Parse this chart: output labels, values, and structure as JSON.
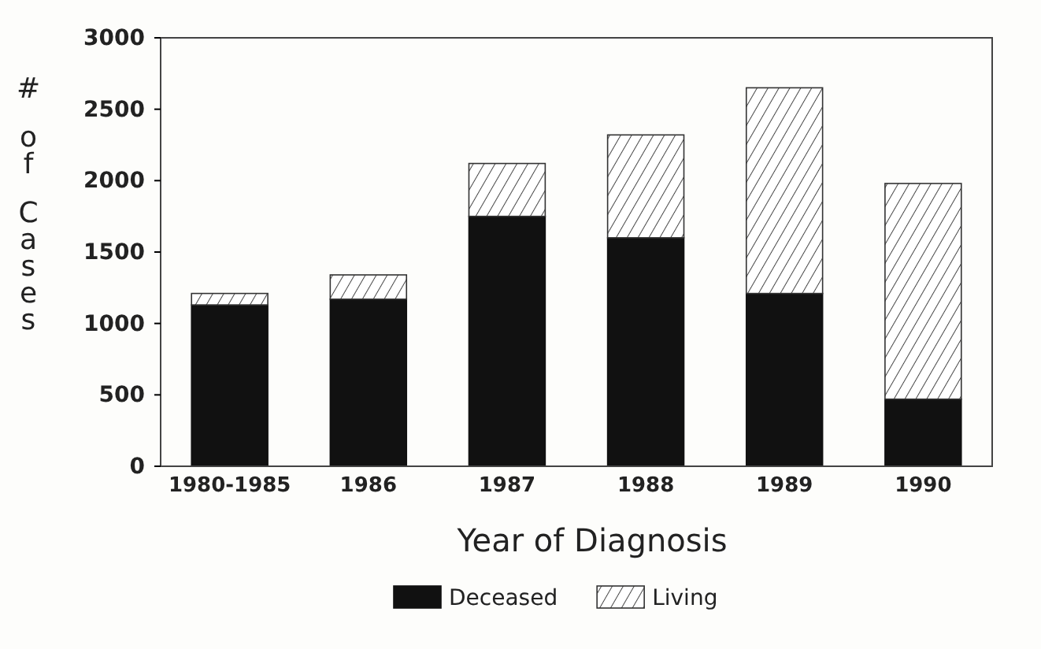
{
  "chart_data": {
    "type": "bar",
    "stacked": true,
    "xlabel": "Year of Diagnosis",
    "ylabel": "# of Cases",
    "categories": [
      "1980-1985",
      "1986",
      "1987",
      "1988",
      "1989",
      "1990"
    ],
    "series": [
      {
        "name": "Deceased",
        "color": "#111111",
        "values": [
          1130,
          1170,
          1750,
          1600,
          1210,
          470
        ]
      },
      {
        "name": "Living",
        "color": "#333333",
        "values": [
          80,
          170,
          370,
          720,
          1440,
          1510
        ]
      }
    ],
    "ylim": [
      0,
      3000
    ],
    "yticks": [
      0,
      500,
      1000,
      1500,
      2000,
      2500,
      3000
    ],
    "grid": false,
    "legend": "bottom"
  }
}
